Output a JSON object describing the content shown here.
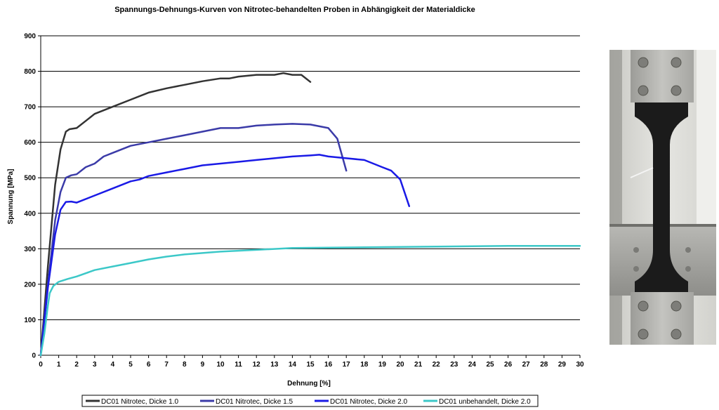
{
  "chart_data": {
    "type": "line",
    "title": "Spannungs-Dehnungs-Kurven von Nitrotec-behandelten Proben in Abhängigkeit der Materialdicke",
    "xlabel": "Dehnung [%]",
    "ylabel": "Spannung [MPa]",
    "xlim": [
      0,
      30
    ],
    "ylim": [
      0,
      900
    ],
    "xticks": [
      0,
      1,
      2,
      3,
      4,
      5,
      6,
      7,
      8,
      9,
      10,
      11,
      12,
      13,
      14,
      15,
      16,
      17,
      18,
      19,
      20,
      21,
      22,
      23,
      24,
      25,
      26,
      27,
      28,
      29,
      30
    ],
    "yticks": [
      0,
      100,
      200,
      300,
      400,
      500,
      600,
      700,
      800,
      900
    ],
    "grid": "horizontal",
    "legend_position": "bottom",
    "series": [
      {
        "name": "DC01 Nitrotec, Dicke 1.0",
        "color": "#333333",
        "x": [
          0,
          0.4,
          0.8,
          1.1,
          1.4,
          1.6,
          2.0,
          2.5,
          3.0,
          4.0,
          5.0,
          6.0,
          7.0,
          8.0,
          9.0,
          10.0,
          10.5,
          11.0,
          12.0,
          13.0,
          13.5,
          14.0,
          14.5,
          15.0
        ],
        "y": [
          0,
          250,
          480,
          580,
          630,
          637,
          640,
          660,
          680,
          700,
          720,
          740,
          752,
          762,
          772,
          780,
          780,
          785,
          790,
          790,
          795,
          790,
          790,
          770
        ]
      },
      {
        "name": "DC01 Nitrotec, Dicke 1.5",
        "color": "#3b3ba8",
        "x": [
          0,
          0.4,
          0.8,
          1.1,
          1.4,
          1.7,
          2.0,
          2.5,
          3.0,
          3.5,
          4.0,
          5.0,
          6.0,
          7.0,
          8.0,
          9.0,
          10.0,
          11.0,
          12.0,
          13.0,
          14.0,
          15.0,
          15.5,
          16.0,
          16.5,
          17.0
        ],
        "y": [
          0,
          200,
          380,
          460,
          500,
          507,
          510,
          530,
          540,
          560,
          570,
          590,
          600,
          610,
          620,
          630,
          640,
          640,
          647,
          650,
          652,
          650,
          645,
          640,
          610,
          520
        ]
      },
      {
        "name": "DC01 Nitrotec, Dicke 2.0",
        "color": "#1a1ae6",
        "x": [
          0,
          0.4,
          0.8,
          1.1,
          1.4,
          1.7,
          2.0,
          3.0,
          4.0,
          5.0,
          5.5,
          6.0,
          7.0,
          8.0,
          9.0,
          10.0,
          11.0,
          12.0,
          13.0,
          14.0,
          15.0,
          15.5,
          16.0,
          17.0,
          18.0,
          19.0,
          19.5,
          20.0,
          20.5
        ],
        "y": [
          0,
          190,
          340,
          410,
          432,
          433,
          430,
          450,
          470,
          490,
          495,
          505,
          515,
          525,
          535,
          540,
          545,
          550,
          555,
          560,
          563,
          565,
          560,
          555,
          550,
          530,
          520,
          495,
          420
        ]
      },
      {
        "name": "DC01 unbehandelt, Dicke 2.0",
        "color": "#3cc8c8",
        "x": [
          0,
          0.2,
          0.4,
          0.5,
          0.7,
          1.0,
          1.5,
          2.0,
          3.0,
          4.0,
          5.0,
          6.0,
          7.0,
          8.0,
          9.0,
          10.0,
          12.0,
          14.0,
          16.0,
          18.0,
          20.0,
          22.0,
          24.0,
          26.0,
          28.0,
          30.0
        ],
        "y": [
          0,
          60,
          140,
          175,
          195,
          207,
          215,
          222,
          240,
          250,
          260,
          270,
          278,
          284,
          288,
          292,
          297,
          302,
          303,
          304,
          305,
          306,
          307,
          308,
          308,
          308
        ]
      }
    ]
  }
}
